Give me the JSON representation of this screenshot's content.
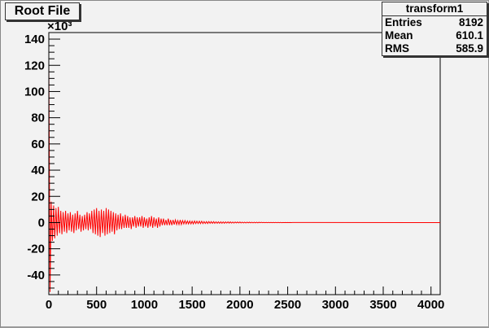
{
  "title": "Root File",
  "stats": {
    "name": "transform1",
    "rows": [
      {
        "label": "Entries",
        "value": "8192"
      },
      {
        "label": "Mean",
        "value": "610.1"
      },
      {
        "label": "RMS",
        "value": "585.9"
      }
    ]
  },
  "chart_data": {
    "type": "line",
    "title": "Root File",
    "xlabel": "",
    "ylabel": "",
    "y_multiplier": "×10³",
    "xlim": [
      0,
      4096
    ],
    "ylim": [
      -55,
      145
    ],
    "xticks": [
      0,
      500,
      1000,
      1500,
      2000,
      2500,
      3000,
      3500,
      4000
    ],
    "yticks": [
      -40,
      -20,
      0,
      20,
      40,
      60,
      80,
      100,
      120,
      140
    ],
    "grid": false,
    "line_color": "#ff0000",
    "x_step": 12.5,
    "values": [
      121,
      -53,
      16,
      -14,
      13,
      -12,
      11,
      -10,
      12,
      -8,
      9,
      -9,
      8,
      -7,
      9,
      -8,
      7,
      -6,
      8,
      -7,
      6,
      -8,
      7,
      -6,
      9,
      -5,
      6,
      -7,
      5,
      -6,
      6,
      -5,
      8,
      -6,
      7,
      -5,
      9,
      -8,
      10,
      -9,
      11,
      -10,
      9,
      -11,
      10,
      -8,
      9,
      -10,
      11,
      -9,
      10,
      -8,
      9,
      -7,
      8,
      -9,
      7,
      -6,
      6,
      -5,
      7,
      -5,
      5,
      -4,
      6,
      -4,
      5,
      -4,
      4,
      -5,
      4,
      -3,
      5,
      -4,
      4,
      -3,
      4,
      -3,
      5,
      -4,
      4,
      -3,
      3,
      -4,
      4,
      -3,
      5,
      -4,
      4,
      -3,
      3,
      -4,
      4,
      -3,
      3,
      -2,
      3,
      -2,
      2,
      -2,
      3,
      -2,
      2,
      -2,
      2,
      -1.5,
      2,
      -1.5,
      1.5,
      -1.5,
      2,
      -1.5,
      1.5,
      -1,
      1.5,
      -1,
      1.2,
      -1,
      1.2,
      -1,
      1,
      -1,
      1.2,
      -0.8,
      1,
      -0.8,
      1,
      -0.8,
      1,
      -0.8,
      0.8,
      -0.7,
      0.8,
      -0.7,
      0.8,
      -0.6,
      0.7,
      -0.6,
      0.7,
      -0.6,
      0.6,
      -0.5,
      0.6,
      -0.5,
      0.6,
      -0.5,
      0.5,
      -0.5,
      0.5,
      -0.4,
      0.5,
      -0.4,
      0.5,
      -0.4,
      0.4,
      -0.4,
      0.4,
      -0.3,
      0.4,
      -0.3,
      0.4,
      -0.3,
      0.3,
      -0.3,
      0.3,
      -0.3,
      0.3,
      -0.2,
      0.3,
      -0.2,
      0.2,
      -0.2,
      0.2,
      -0.2,
      0.2,
      -0.2,
      0.2,
      -0.1,
      0.2,
      -0.1,
      0.1,
      -0.1,
      0.1,
      -0.1,
      0.1,
      -0.1,
      0.1,
      -0.1,
      0.1,
      -0.1,
      0.1,
      -0.1,
      0.1,
      -0.1,
      0.1,
      -0.1,
      0.05,
      -0.05,
      0.05,
      -0.05,
      0.05,
      -0.05,
      0.05,
      -0.05,
      0,
      0
    ]
  }
}
